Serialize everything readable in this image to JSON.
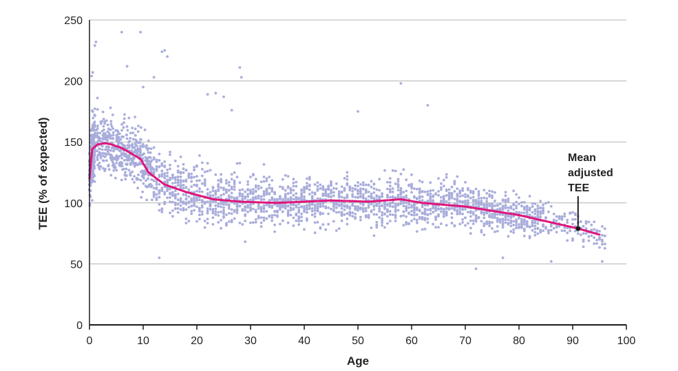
{
  "chart_data": {
    "type": "scatter",
    "title": "",
    "xlabel": "Age",
    "ylabel": "TEE (% of expected)",
    "xlim": [
      0,
      100
    ],
    "ylim": [
      0,
      250
    ],
    "x_ticks": [
      0,
      10,
      20,
      30,
      40,
      50,
      60,
      70,
      80,
      90,
      100
    ],
    "y_ticks": [
      0,
      50,
      100,
      150,
      200,
      250
    ],
    "grid": "horizontal",
    "legend": "none",
    "colors": {
      "points": "#a9addb",
      "mean_line": "#e0157a",
      "grid": "#b3b3b3",
      "axis": "#1a1a1a",
      "marker": "#1a1a1a"
    },
    "series": [
      {
        "kind": "scatter-cloud",
        "note_from_chart": "individual measurements, dense vertical columns of dots by age",
        "trend_x": [
          0,
          0.5,
          1,
          2,
          4,
          6,
          8,
          9,
          10,
          12,
          15,
          20,
          25,
          30,
          35,
          40,
          45,
          50,
          55,
          58,
          60,
          65,
          70,
          75,
          80,
          85,
          90,
          95,
          96
        ],
        "trend_y": [
          120,
          140,
          150,
          150,
          147,
          143,
          140,
          138,
          132,
          122,
          113,
          108,
          103,
          101,
          100,
          101,
          101,
          101,
          101,
          103,
          101,
          99,
          97,
          95,
          90,
          86,
          81,
          75,
          72
        ],
        "spread_sd": [
          18,
          20,
          20,
          18,
          18,
          18,
          17,
          17,
          17,
          17,
          17,
          16,
          15,
          14,
          13,
          13,
          13,
          13,
          13,
          13,
          13,
          13,
          13,
          13,
          12,
          10,
          9,
          9,
          9
        ],
        "outliers": [
          [
            1.0,
            229
          ],
          [
            1.2,
            232
          ],
          [
            0.6,
            207
          ],
          [
            0.4,
            204
          ],
          [
            6,
            240
          ],
          [
            9.5,
            240
          ],
          [
            7,
            212
          ],
          [
            14,
            225
          ],
          [
            14.5,
            220
          ],
          [
            13.5,
            224
          ],
          [
            28,
            211
          ],
          [
            28.3,
            203
          ],
          [
            22,
            189
          ],
          [
            23.5,
            190
          ],
          [
            25,
            187
          ],
          [
            26.5,
            176
          ],
          [
            58,
            198
          ],
          [
            63,
            180
          ],
          [
            50,
            175
          ],
          [
            12,
            203
          ],
          [
            10,
            195
          ],
          [
            72,
            46
          ],
          [
            13,
            55
          ],
          [
            95.5,
            52
          ],
          [
            77,
            55
          ],
          [
            86,
            52
          ]
        ]
      },
      {
        "name": "Mean adjusted TEE",
        "kind": "line",
        "x": [
          0,
          0.5,
          1.5,
          3,
          4,
          6,
          8,
          9.5,
          11,
          14,
          18,
          23,
          28,
          35,
          45,
          52,
          58,
          62,
          70,
          80,
          88,
          91,
          95
        ],
        "y": [
          120,
          144,
          148,
          149,
          148,
          145,
          140,
          136,
          125,
          115,
          109,
          103,
          101,
          100,
          102,
          101,
          103,
          100,
          97,
          90,
          82,
          79,
          74
        ]
      }
    ],
    "annotation": {
      "lines": [
        "Mean",
        "adjusted",
        "TEE"
      ],
      "marker": [
        91,
        79
      ]
    }
  }
}
